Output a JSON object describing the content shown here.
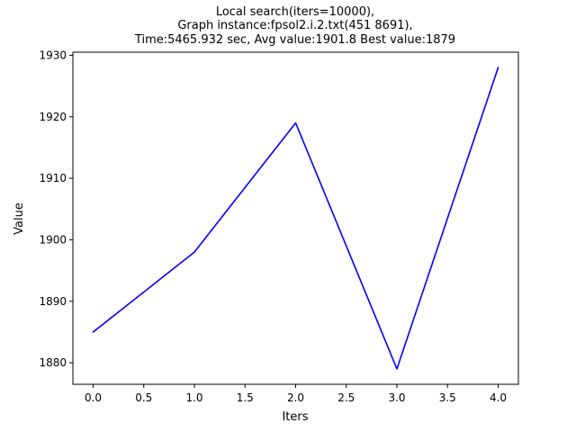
{
  "chart_data": {
    "type": "line",
    "title_lines": [
      "Local search(iters=10000),",
      "Graph instance:fpsol2.i.2.txt(451 8691),",
      "Time:5465.932 sec, Avg value:1901.8 Best value:1879"
    ],
    "xlabel": "Iters",
    "ylabel": "Value",
    "xlim": [
      -0.2,
      4.2
    ],
    "ylim": [
      1876.5,
      1930.5
    ],
    "x_ticks": [
      0.0,
      0.5,
      1.0,
      1.5,
      2.0,
      2.5,
      3.0,
      3.5,
      4.0
    ],
    "x_tick_labels": [
      "0.0",
      "0.5",
      "1.0",
      "1.5",
      "2.0",
      "2.5",
      "3.0",
      "3.5",
      "4.0"
    ],
    "y_ticks": [
      1880,
      1890,
      1900,
      1910,
      1920,
      1930
    ],
    "y_tick_labels": [
      "1880",
      "1890",
      "1900",
      "1910",
      "1920",
      "1930"
    ],
    "grid": false,
    "legend": "none",
    "series": [
      {
        "color": "#0000ff",
        "x": [
          0,
          1,
          2,
          3,
          4
        ],
        "values": [
          1885,
          1898,
          1919,
          1879,
          1928
        ]
      }
    ]
  }
}
